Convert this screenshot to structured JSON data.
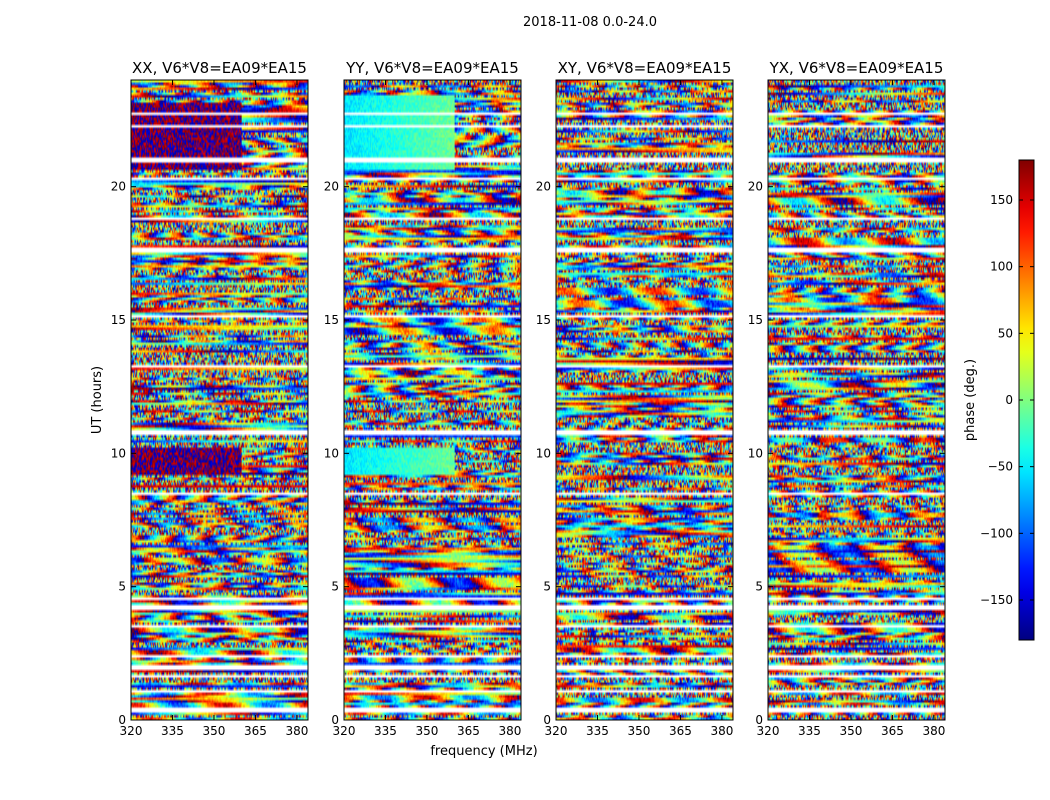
{
  "chart_data": {
    "type": "heatmap",
    "suptitle": "2018-11-08 0.0-24.0",
    "panels": [
      {
        "title": "XX, V6*V8=EA09*EA15",
        "seed": 11,
        "dark_band": true,
        "cyan_band": false
      },
      {
        "title": "YY, V6*V8=EA09*EA15",
        "seed": 23,
        "dark_band": false,
        "cyan_band": true
      },
      {
        "title": "XY, V6*V8=EA09*EA15",
        "seed": 37,
        "dark_band": false,
        "cyan_band": false
      },
      {
        "title": "YX, V6*V8=EA09*EA15",
        "seed": 53,
        "dark_band": false,
        "cyan_band": false
      }
    ],
    "xlabel": "frequency (MHz)",
    "ylabel": "UT (hours)",
    "xlim": [
      320,
      384
    ],
    "ylim": [
      0,
      24
    ],
    "xticks": [
      "320",
      "335",
      "350",
      "365",
      "380"
    ],
    "xtick_values": [
      320,
      335,
      350,
      365,
      380
    ],
    "yticks": [
      "0",
      "5",
      "10",
      "15",
      "20"
    ],
    "ytick_values": [
      0,
      5,
      10,
      15,
      20
    ],
    "colorbar": {
      "label": "phase (deg.)",
      "range": [
        -180,
        180
      ],
      "ticks": [
        "150",
        "100",
        "50",
        "0",
        "−50",
        "−100",
        "−150"
      ],
      "tick_values": [
        150,
        100,
        50,
        0,
        -50,
        -100,
        -150
      ],
      "colormap": "jet"
    },
    "flagged_ut_gaps": [
      0.5,
      1.15,
      1.65,
      2.05,
      2.4,
      3.55,
      4.35,
      4.55,
      8.55,
      10.85,
      13.3,
      15.15,
      17.75,
      18.85,
      20.3,
      21.05,
      22.3,
      22.8
    ]
  }
}
